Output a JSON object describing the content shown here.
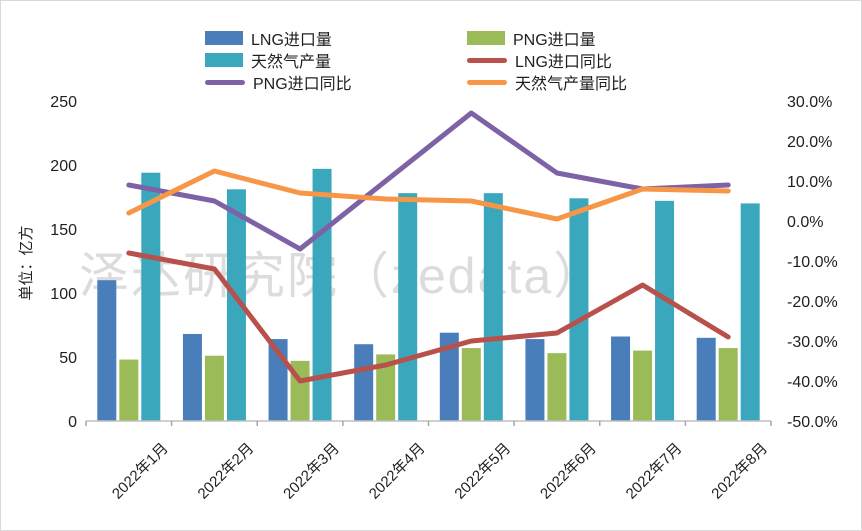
{
  "chart_data": {
    "type": "combo-bar-line",
    "title": "",
    "categories": [
      "2022年1月",
      "2022年2月",
      "2022年3月",
      "2022年4月",
      "2022年5月",
      "2022年6月",
      "2022年7月",
      "2022年8月"
    ],
    "bar_series": [
      {
        "name": "LNG进口量",
        "color": "#4A7EBB",
        "axis": "left",
        "values": [
          110,
          68,
          64,
          60,
          69,
          64,
          66,
          65
        ]
      },
      {
        "name": "PNG进口量",
        "color": "#9BBB59",
        "axis": "left",
        "values": [
          48,
          51,
          47,
          52,
          57,
          53,
          55,
          57
        ]
      },
      {
        "name": "天然气产量",
        "color": "#3BA7BC",
        "axis": "left",
        "values": [
          194,
          181,
          197,
          178,
          178,
          174,
          172,
          170
        ]
      }
    ],
    "line_series": [
      {
        "name": "LNG进口同比",
        "color": "#B8504B",
        "axis": "right",
        "values": [
          -8,
          -12,
          -40,
          -36,
          -30,
          -28,
          -16,
          -29
        ]
      },
      {
        "name": "PNG进口同比",
        "color": "#7D63A5",
        "axis": "right",
        "values": [
          9,
          5,
          -7,
          10,
          27,
          12,
          8,
          9
        ]
      },
      {
        "name": "天然气产量同比",
        "color": "#F79646",
        "axis": "right",
        "values": [
          2,
          12.5,
          7,
          5.5,
          5,
          0.5,
          8,
          7.5
        ]
      }
    ],
    "left_axis": {
      "title": "单位：亿方",
      "min": 0,
      "max": 250,
      "step": 50,
      "tick_labels": [
        "0",
        "50",
        "100",
        "150",
        "200",
        "250"
      ]
    },
    "right_axis": {
      "min": -50,
      "max": 30,
      "step": 10,
      "tick_labels": [
        "-50.0%",
        "-40.0%",
        "-30.0%",
        "-20.0%",
        "-10.0%",
        "0.0%",
        "10.0%",
        "20.0%",
        "30.0%"
      ]
    },
    "watermark": "泽达研究院（zedata）",
    "legend_position": "top",
    "grid": false,
    "colors": {
      "axis_line": "#bfbfbf",
      "tick_mark": "#a6a6a6",
      "tick_text": "#1f1f1f",
      "watermark": "#dcdcdc",
      "background": "#ffffff"
    }
  }
}
